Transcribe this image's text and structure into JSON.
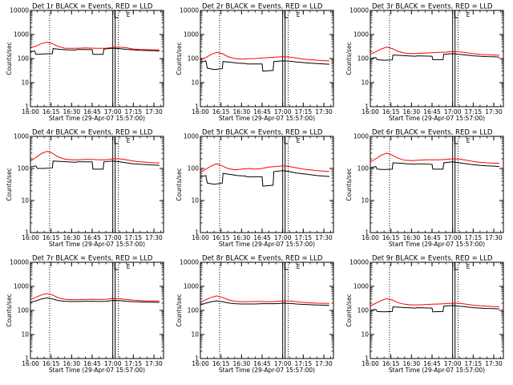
{
  "window": {
    "title": ""
  },
  "figure": {
    "xlabel": "Start Time (29-Apr-07 15:57:00)",
    "ylabel": "Counts/sec",
    "x_tick_labels": [
      "16:00",
      "16:15",
      "16:30",
      "16:45",
      "17:00",
      "17:15",
      "17:30"
    ],
    "y_tick_labels": [
      "1",
      "10",
      "100",
      "1000",
      "10000"
    ],
    "marker_glyph": "E",
    "colors": {
      "events": "#000000",
      "lld": "#ff0000",
      "background": "#ffffff"
    }
  },
  "chart_data": [
    {
      "type": "line",
      "title": "Det 1r BLACK = Events, RED = LLD",
      "x_unit": "minutes after 16:00",
      "y_scale": "log",
      "ylim": [
        1,
        10000
      ],
      "xlim": [
        0,
        97
      ],
      "grid": false,
      "legend": "title",
      "dotted_lines_x": [
        14,
        64
      ],
      "solid_marker_x": 60,
      "flag_x": 61.5,
      "e_label_x": 70,
      "series": [
        {
          "name": "BLACK = Events",
          "color": "#000000",
          "x": [
            0,
            3,
            4,
            10,
            16,
            16.5,
            22,
            27,
            33,
            34,
            45,
            45.5,
            53,
            53.5,
            60,
            65,
            70,
            75,
            80,
            85,
            90,
            94
          ],
          "y": [
            180,
            210,
            150,
            155,
            160,
            260,
            240,
            230,
            225,
            240,
            235,
            150,
            150,
            250,
            270,
            260,
            240,
            230,
            220,
            215,
            210,
            205
          ]
        },
        {
          "name": "RED = LLD",
          "color": "#ff0000",
          "x": [
            0,
            4,
            8,
            12,
            16,
            20,
            25,
            30,
            35,
            40,
            45,
            50,
            55,
            60,
            65,
            70,
            75,
            80,
            85,
            90,
            94
          ],
          "y": [
            280,
            330,
            420,
            480,
            420,
            320,
            270,
            265,
            270,
            275,
            270,
            265,
            270,
            290,
            300,
            280,
            250,
            240,
            235,
            230,
            230
          ]
        }
      ]
    },
    {
      "type": "line",
      "title": "Det 2r BLACK = Events, RED = LLD",
      "x_unit": "minutes after 16:00",
      "y_scale": "log",
      "ylim": [
        1,
        10000
      ],
      "xlim": [
        0,
        97
      ],
      "grid": false,
      "legend": "title",
      "dotted_lines_x": [
        14,
        64
      ],
      "solid_marker_x": 60,
      "flag_x": 61.5,
      "e_label_x": 70,
      "series": [
        {
          "name": "BLACK = Events",
          "color": "#000000",
          "x": [
            0,
            4,
            5,
            10,
            16,
            16.5,
            22,
            27,
            33,
            34,
            45,
            45.5,
            53,
            53.5,
            60,
            65,
            70,
            75,
            80,
            85,
            90,
            94
          ],
          "y": [
            70,
            80,
            40,
            35,
            38,
            75,
            70,
            65,
            62,
            60,
            60,
            30,
            32,
            75,
            80,
            78,
            72,
            68,
            64,
            62,
            60,
            58
          ]
        },
        {
          "name": "RED = LLD",
          "color": "#ff0000",
          "x": [
            0,
            4,
            8,
            12,
            16,
            20,
            25,
            30,
            35,
            40,
            45,
            50,
            55,
            60,
            65,
            70,
            75,
            80,
            85,
            90,
            94
          ],
          "y": [
            90,
            110,
            150,
            180,
            160,
            120,
            100,
            95,
            98,
            100,
            105,
            110,
            115,
            120,
            115,
            105,
            95,
            90,
            85,
            82,
            80
          ]
        }
      ]
    },
    {
      "type": "line",
      "title": "Det 3r BLACK = Events, RED = LLD",
      "x_unit": "minutes after 16:00",
      "y_scale": "log",
      "ylim": [
        1,
        10000
      ],
      "xlim": [
        0,
        97
      ],
      "grid": false,
      "legend": "title",
      "dotted_lines_x": [
        14,
        64
      ],
      "solid_marker_x": 60,
      "flag_x": 61.5,
      "e_label_x": 70,
      "series": [
        {
          "name": "BLACK = Events",
          "color": "#000000",
          "x": [
            0,
            4,
            5,
            10,
            16,
            16.5,
            22,
            27,
            33,
            34,
            45,
            45.5,
            53,
            53.5,
            60,
            65,
            70,
            75,
            80,
            85,
            90,
            94
          ],
          "y": [
            100,
            110,
            90,
            85,
            88,
            140,
            135,
            130,
            125,
            130,
            125,
            90,
            90,
            150,
            160,
            150,
            140,
            130,
            125,
            120,
            118,
            115
          ]
        },
        {
          "name": "RED = LLD",
          "color": "#ff0000",
          "x": [
            0,
            4,
            8,
            12,
            16,
            20,
            25,
            30,
            35,
            40,
            45,
            50,
            55,
            60,
            65,
            70,
            75,
            80,
            85,
            90,
            94
          ],
          "y": [
            150,
            190,
            250,
            300,
            260,
            200,
            170,
            160,
            165,
            170,
            175,
            180,
            185,
            195,
            190,
            175,
            160,
            150,
            145,
            140,
            138
          ]
        }
      ]
    },
    {
      "type": "line",
      "title": "Det 4r BLACK = Events, RED = LLD",
      "x_unit": "minutes after 16:00",
      "y_scale": "log",
      "ylim": [
        1,
        1000
      ],
      "xlim": [
        0,
        97
      ],
      "grid": false,
      "legend": "title",
      "dotted_lines_x": [
        14,
        64
      ],
      "solid_marker_x": 60,
      "flag_x": 61.5,
      "e_label_x": 70,
      "series": [
        {
          "name": "BLACK = Events",
          "color": "#000000",
          "x": [
            0,
            4,
            5,
            10,
            16,
            16.5,
            22,
            27,
            33,
            34,
            45,
            45.5,
            53,
            53.5,
            60,
            65,
            70,
            75,
            80,
            85,
            90,
            94
          ],
          "y": [
            110,
            120,
            100,
            100,
            105,
            170,
            165,
            160,
            155,
            160,
            160,
            95,
            95,
            160,
            170,
            160,
            150,
            140,
            135,
            130,
            128,
            125
          ]
        },
        {
          "name": "RED = LLD",
          "color": "#ff0000",
          "x": [
            0,
            4,
            8,
            12,
            16,
            20,
            25,
            30,
            35,
            40,
            45,
            50,
            55,
            60,
            65,
            70,
            75,
            80,
            85,
            90,
            94
          ],
          "y": [
            170,
            220,
            290,
            340,
            300,
            230,
            195,
            185,
            185,
            190,
            190,
            185,
            185,
            200,
            200,
            185,
            170,
            160,
            155,
            150,
            150
          ]
        }
      ]
    },
    {
      "type": "line",
      "title": "Det 5r BLACK = Events, RED = LLD",
      "x_unit": "minutes after 16:00",
      "y_scale": "log",
      "ylim": [
        1,
        1000
      ],
      "xlim": [
        0,
        97
      ],
      "grid": false,
      "legend": "title",
      "dotted_lines_x": [
        14,
        64
      ],
      "solid_marker_x": 60,
      "flag_x": 61.5,
      "e_label_x": 70,
      "series": [
        {
          "name": "BLACK = Events",
          "color": "#000000",
          "x": [
            0,
            4,
            5,
            10,
            16,
            16.5,
            22,
            27,
            33,
            34,
            45,
            45.5,
            53,
            53.5,
            60,
            65,
            70,
            75,
            80,
            85,
            90,
            94
          ],
          "y": [
            55,
            60,
            35,
            32,
            35,
            70,
            65,
            60,
            58,
            55,
            55,
            28,
            30,
            80,
            85,
            80,
            72,
            68,
            64,
            60,
            58,
            56
          ]
        },
        {
          "name": "RED = LLD",
          "color": "#ff0000",
          "x": [
            0,
            4,
            8,
            12,
            16,
            20,
            25,
            30,
            35,
            40,
            45,
            50,
            55,
            60,
            65,
            70,
            75,
            80,
            85,
            90,
            94
          ],
          "y": [
            75,
            95,
            120,
            140,
            120,
            100,
            90,
            95,
            100,
            95,
            100,
            110,
            115,
            120,
            115,
            105,
            95,
            90,
            85,
            82,
            80
          ]
        }
      ]
    },
    {
      "type": "line",
      "title": "Det 6r BLACK = Events, RED = LLD",
      "x_unit": "minutes after 16:00",
      "y_scale": "log",
      "ylim": [
        1,
        1000
      ],
      "xlim": [
        0,
        97
      ],
      "grid": false,
      "legend": "title",
      "dotted_lines_x": [
        14,
        64
      ],
      "solid_marker_x": 60,
      "flag_x": 61.5,
      "e_label_x": 70,
      "series": [
        {
          "name": "BLACK = Events",
          "color": "#000000",
          "x": [
            0,
            4,
            5,
            10,
            16,
            16.5,
            22,
            27,
            33,
            34,
            45,
            45.5,
            53,
            53.5,
            60,
            65,
            70,
            75,
            80,
            85,
            90,
            94
          ],
          "y": [
            105,
            115,
            95,
            92,
            95,
            150,
            145,
            140,
            135,
            140,
            135,
            95,
            95,
            150,
            160,
            150,
            140,
            130,
            125,
            120,
            118,
            115
          ]
        },
        {
          "name": "RED = LLD",
          "color": "#ff0000",
          "x": [
            0,
            4,
            8,
            12,
            16,
            20,
            25,
            30,
            35,
            40,
            45,
            50,
            55,
            60,
            65,
            70,
            75,
            80,
            85,
            90,
            94
          ],
          "y": [
            160,
            200,
            260,
            300,
            260,
            210,
            180,
            175,
            180,
            185,
            185,
            185,
            190,
            200,
            195,
            180,
            165,
            155,
            150,
            145,
            145
          ]
        }
      ]
    },
    {
      "type": "line",
      "title": "Det 7r BLACK = Events, RED = LLD",
      "x_unit": "minutes after 16:00",
      "y_scale": "log",
      "ylim": [
        1,
        10000
      ],
      "xlim": [
        0,
        97
      ],
      "grid": false,
      "legend": "title",
      "dotted_lines_x": [
        14,
        64
      ],
      "solid_marker_x": 60,
      "flag_x": 61.5,
      "e_label_x": 70,
      "series": [
        {
          "name": "BLACK = Events",
          "color": "#000000",
          "x": [
            0,
            4,
            8,
            12,
            16,
            20,
            25,
            30,
            35,
            40,
            45,
            50,
            55,
            60,
            65,
            70,
            75,
            80,
            85,
            90,
            94
          ],
          "y": [
            220,
            250,
            300,
            330,
            300,
            260,
            240,
            235,
            235,
            240,
            240,
            235,
            240,
            260,
            255,
            240,
            230,
            225,
            220,
            218,
            215
          ]
        },
        {
          "name": "RED = LLD",
          "color": "#ff0000",
          "x": [
            0,
            4,
            8,
            12,
            16,
            20,
            25,
            30,
            35,
            40,
            45,
            50,
            55,
            60,
            65,
            70,
            75,
            80,
            85,
            90,
            94
          ],
          "y": [
            280,
            350,
            440,
            500,
            440,
            340,
            290,
            280,
            280,
            285,
            290,
            285,
            290,
            310,
            305,
            285,
            265,
            255,
            248,
            245,
            245
          ]
        }
      ]
    },
    {
      "type": "line",
      "title": "Det 8r BLACK = Events, RED = LLD",
      "x_unit": "minutes after 16:00",
      "y_scale": "log",
      "ylim": [
        1,
        10000
      ],
      "xlim": [
        0,
        97
      ],
      "grid": false,
      "legend": "title",
      "dotted_lines_x": [
        14,
        64
      ],
      "solid_marker_x": 60,
      "flag_x": 61.5,
      "e_label_x": 70,
      "series": [
        {
          "name": "BLACK = Events",
          "color": "#000000",
          "x": [
            0,
            4,
            8,
            12,
            16,
            20,
            25,
            30,
            35,
            40,
            45,
            50,
            55,
            60,
            65,
            70,
            75,
            80,
            85,
            90,
            94
          ],
          "y": [
            170,
            200,
            230,
            250,
            230,
            205,
            190,
            185,
            185,
            185,
            190,
            190,
            190,
            200,
            195,
            185,
            178,
            172,
            168,
            165,
            163
          ]
        },
        {
          "name": "RED = LLD",
          "color": "#ff0000",
          "x": [
            0,
            4,
            8,
            12,
            16,
            20,
            25,
            30,
            35,
            40,
            45,
            50,
            55,
            60,
            65,
            70,
            75,
            80,
            85,
            90,
            94
          ],
          "y": [
            220,
            280,
            350,
            400,
            350,
            280,
            240,
            230,
            230,
            235,
            235,
            230,
            235,
            250,
            245,
            230,
            215,
            205,
            200,
            198,
            195
          ]
        }
      ]
    },
    {
      "type": "line",
      "title": "Det 9r BLACK = Events, RED = LLD",
      "x_unit": "minutes after 16:00",
      "y_scale": "log",
      "ylim": [
        1,
        10000
      ],
      "xlim": [
        0,
        97
      ],
      "grid": false,
      "legend": "title",
      "dotted_lines_x": [
        14,
        64
      ],
      "solid_marker_x": 60,
      "flag_x": 61.5,
      "e_label_x": 70,
      "series": [
        {
          "name": "BLACK = Events",
          "color": "#000000",
          "x": [
            0,
            4,
            5,
            10,
            16,
            16.5,
            22,
            27,
            33,
            34,
            45,
            45.5,
            53,
            53.5,
            60,
            65,
            70,
            75,
            80,
            85,
            90,
            94
          ],
          "y": [
            100,
            110,
            90,
            88,
            90,
            140,
            135,
            130,
            125,
            130,
            125,
            88,
            90,
            150,
            160,
            150,
            140,
            130,
            125,
            120,
            118,
            115
          ]
        },
        {
          "name": "RED = LLD",
          "color": "#ff0000",
          "x": [
            0,
            4,
            8,
            12,
            16,
            20,
            25,
            30,
            35,
            40,
            45,
            50,
            55,
            60,
            65,
            70,
            75,
            80,
            85,
            90,
            94
          ],
          "y": [
            150,
            200,
            260,
            310,
            270,
            210,
            180,
            170,
            170,
            175,
            180,
            185,
            190,
            200,
            195,
            180,
            165,
            155,
            150,
            145,
            142
          ]
        }
      ]
    }
  ]
}
